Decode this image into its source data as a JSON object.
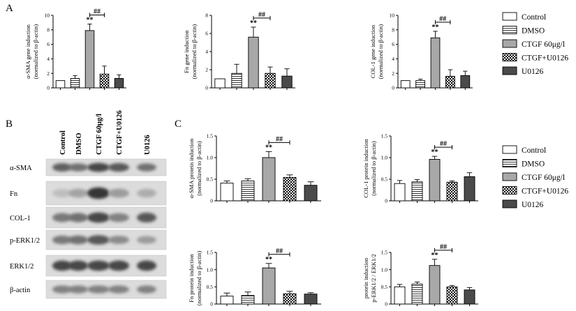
{
  "panels": {
    "a": "A",
    "b": "B",
    "c": "C"
  },
  "chart_data": [
    {
      "type": "bar",
      "categories": [
        "Control",
        "DMSO",
        "CTGF 60μg/l",
        "CTGF+U0126",
        "U0126"
      ],
      "values": [
        1.0,
        1.3,
        7.9,
        1.9,
        1.3
      ],
      "errors": [
        0.0,
        0.4,
        0.9,
        1.1,
        0.5
      ],
      "ylabel": [
        "α-SMA gene induction",
        "(normalized to β-actin)"
      ],
      "ylim": [
        0,
        10
      ],
      "yticks": [
        "0",
        "2",
        "4",
        "6",
        "8",
        "10"
      ],
      "sig_star": "**",
      "sig_hash": "##"
    },
    {
      "type": "bar",
      "categories": [
        "Control",
        "DMSO",
        "CTGF 60μg/l",
        "CTGF+U0126",
        "U0126"
      ],
      "values": [
        1.0,
        1.6,
        5.6,
        1.6,
        1.3
      ],
      "errors": [
        0.0,
        1.0,
        1.1,
        0.7,
        0.8
      ],
      "ylabel": [
        "Fn gene induction",
        "(normalized to β-actin)"
      ],
      "ylim": [
        0,
        8
      ],
      "yticks": [
        "0",
        "2",
        "4",
        "6",
        "8"
      ],
      "sig_star": "**",
      "sig_hash": "##"
    },
    {
      "type": "bar",
      "categories": [
        "Control",
        "DMSO",
        "CTGF 60μg/l",
        "CTGF+U0126",
        "U0126"
      ],
      "values": [
        1.0,
        1.0,
        6.9,
        1.6,
        1.7
      ],
      "errors": [
        0.0,
        0.2,
        0.9,
        0.9,
        0.6
      ],
      "ylabel": [
        "COL-1 gene induction",
        "(normalized to β-actin)"
      ],
      "ylim": [
        0,
        10
      ],
      "yticks": [
        "0",
        "2",
        "4",
        "6",
        "8",
        "10"
      ],
      "sig_star": "**",
      "sig_hash": "##"
    },
    {
      "type": "bar",
      "categories": [
        "Control",
        "DMSO",
        "CTGF 60μg/l",
        "CTGF+U0126",
        "U0126"
      ],
      "values": [
        0.41,
        0.46,
        1.0,
        0.54,
        0.36
      ],
      "errors": [
        0.05,
        0.05,
        0.14,
        0.06,
        0.08
      ],
      "ylabel": [
        "α-SMA protein induction",
        "(normalized to β-actin)"
      ],
      "ylim": [
        0,
        1.5
      ],
      "yticks": [
        "0",
        "0.5",
        "1.0",
        "1.5"
      ],
      "sig_star": "**",
      "sig_hash": "##"
    },
    {
      "type": "bar",
      "categories": [
        "Control",
        "DMSO",
        "CTGF 60μg/l",
        "CTGF+U0126",
        "U0126"
      ],
      "values": [
        0.4,
        0.44,
        0.96,
        0.43,
        0.56
      ],
      "errors": [
        0.07,
        0.05,
        0.07,
        0.03,
        0.09
      ],
      "ylabel": [
        "COL-1 protein induction",
        "(normalized to β-actin)"
      ],
      "ylim": [
        0,
        1.5
      ],
      "yticks": [
        "0",
        "0.5",
        "1.0",
        "1.5"
      ],
      "sig_star": "**",
      "sig_hash": "##"
    },
    {
      "type": "bar",
      "categories": [
        "Control",
        "DMSO",
        "CTGF 60μg/l",
        "CTGF+U0126",
        "U0126"
      ],
      "values": [
        0.23,
        0.25,
        1.05,
        0.3,
        0.29
      ],
      "errors": [
        0.09,
        0.1,
        0.13,
        0.07,
        0.04
      ],
      "ylabel": [
        "Fn protein induction",
        "(normalized to β-actin)"
      ],
      "ylim": [
        0,
        1.5
      ],
      "yticks": [
        "0",
        "0.5",
        "1.0",
        "1.5"
      ],
      "sig_star": "**",
      "sig_hash": "##"
    },
    {
      "type": "bar",
      "categories": [
        "Control",
        "DMSO",
        "CTGF 60μg/l",
        "CTGF+U0126",
        "U0126"
      ],
      "values": [
        0.5,
        0.58,
        1.12,
        0.5,
        0.41
      ],
      "errors": [
        0.07,
        0.06,
        0.18,
        0.04,
        0.07
      ],
      "ylabel": [
        "protein induction",
        "p-ERK1/2 / ERK1/2"
      ],
      "ylim": [
        0,
        1.5
      ],
      "yticks": [
        "0",
        "0.5",
        "1.0",
        "1.5"
      ],
      "sig_star": "**",
      "sig_hash": "##"
    }
  ],
  "legend": {
    "entries": [
      "Control",
      "DMSO",
      "CTGF 60μg/l",
      "CTGF+U0126",
      "U0126"
    ],
    "placement": "right"
  },
  "bar_styles": [
    "white",
    "hlines",
    "gray",
    "checker",
    "dark"
  ],
  "colors": {
    "gray": "#a8a8a8",
    "dark": "#4a4a4a",
    "axis": "#000000"
  },
  "blot": {
    "lanes": [
      "Control",
      "DMSO",
      "CTGF 60μg/l",
      "CTGF+U0126",
      "U0126"
    ],
    "rows": [
      {
        "label": "α-SMA",
        "intensity": [
          0.7,
          0.6,
          0.85,
          0.75,
          0.6
        ]
      },
      {
        "label": "Fn",
        "intensity": [
          0.15,
          0.3,
          0.95,
          0.35,
          0.25
        ]
      },
      {
        "label": "COL-1",
        "intensity": [
          0.55,
          0.6,
          0.85,
          0.5,
          0.75
        ]
      },
      {
        "label": "p-ERK1/2",
        "intensity": [
          0.55,
          0.6,
          0.75,
          0.45,
          0.35
        ]
      },
      {
        "label": "ERK1/2",
        "intensity": [
          0.85,
          0.85,
          0.85,
          0.85,
          0.85
        ]
      },
      {
        "label": "β-actin",
        "intensity": [
          0.5,
          0.5,
          0.5,
          0.5,
          0.5
        ]
      }
    ]
  }
}
